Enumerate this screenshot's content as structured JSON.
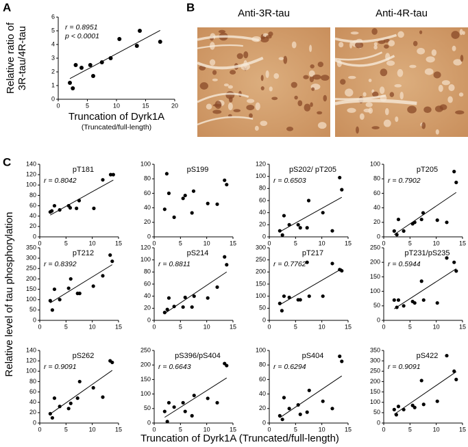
{
  "panel_labels": [
    "A",
    "B",
    "C"
  ],
  "micrographs": [
    "Anti-3R-tau",
    "Anti-4R-tau"
  ],
  "panel_c": {
    "y_label": "Relative level of tau phosphorylation",
    "x_label": "Truncation of Dyrk1A (Truncated/full-length)"
  },
  "chart_data": [
    {
      "type": "scatter",
      "y_label": [
        "Relative ratio of",
        "3R-tau/4R-tau"
      ],
      "x_label": "Truncation of Dyrk1A",
      "x_sublabel": "(Truncated/full-length)",
      "annotations": [
        "r = 0.8951",
        "p < 0.0001"
      ],
      "trendline": true,
      "x": [
        2,
        2.5,
        3,
        4,
        5.5,
        6,
        7.5,
        9,
        10.5,
        13.5,
        14,
        17.5
      ],
      "values": [
        1.2,
        0.8,
        2.5,
        2.3,
        2.5,
        1.7,
        2.7,
        3.0,
        4.4,
        3.9,
        5.0,
        4.2
      ],
      "xlim": [
        0,
        20
      ],
      "xticks": [
        0,
        5,
        10,
        15,
        20
      ],
      "ylim": [
        0,
        6
      ],
      "yticks": [
        0,
        1,
        2,
        3,
        4,
        5,
        6
      ],
      "color": "#000000"
    },
    {
      "type": "scatter",
      "title": "pT181",
      "annotations": [
        "r = 0.8042"
      ],
      "trendline": true,
      "x": [
        2,
        2.3,
        2.8,
        3.8,
        5.5,
        5.8,
        7,
        7.5,
        10.3,
        12,
        13.5,
        14
      ],
      "values": [
        48,
        50,
        60,
        52,
        60,
        56,
        55,
        70,
        55,
        110,
        120,
        120
      ],
      "xlim": [
        0,
        15
      ],
      "xticks": [
        0,
        5,
        10,
        15
      ],
      "ylim": [
        0,
        140
      ],
      "yticks": [
        0,
        20,
        40,
        60,
        80,
        100,
        120,
        140
      ],
      "color": "#000000"
    },
    {
      "type": "scatter",
      "title": "pS199",
      "annotations": [],
      "trendline": false,
      "x": [
        2,
        2.4,
        2.8,
        3.8,
        5.5,
        5.9,
        7.2,
        7.5,
        10.2,
        12,
        13.4,
        13.8
      ],
      "values": [
        38,
        87,
        60,
        27,
        53,
        57,
        33,
        63,
        46,
        45,
        78,
        72
      ],
      "xlim": [
        0,
        15
      ],
      "xticks": [
        0,
        5,
        10,
        15
      ],
      "ylim": [
        0,
        100
      ],
      "yticks": [
        0,
        20,
        40,
        60,
        80,
        100
      ],
      "color": "#000000"
    },
    {
      "type": "scatter",
      "title": "pS202/ pT205",
      "annotations": [
        "r = 0.6503"
      ],
      "trendline": true,
      "x": [
        2,
        2.5,
        2.8,
        3.8,
        5.5,
        5.9,
        7.2,
        7.5,
        10.2,
        12,
        13.4,
        13.8
      ],
      "values": [
        10,
        3,
        35,
        20,
        20,
        15,
        15,
        60,
        40,
        10,
        98,
        78
      ],
      "xlim": [
        0,
        15
      ],
      "xticks": [
        0,
        5,
        10,
        15
      ],
      "ylim": [
        0,
        120
      ],
      "yticks": [
        0,
        20,
        40,
        60,
        80,
        100,
        120
      ],
      "color": "#000000"
    },
    {
      "type": "scatter",
      "title": "pT205",
      "annotations": [
        "r = 0.7902"
      ],
      "trendline": true,
      "x": [
        2,
        2.5,
        2.8,
        3.8,
        5.5,
        5.9,
        7.2,
        7.5,
        10.2,
        12,
        13.4,
        13.8
      ],
      "values": [
        8,
        3,
        24,
        8,
        18,
        20,
        24,
        33,
        23,
        20,
        90,
        75
      ],
      "xlim": [
        0,
        15
      ],
      "xticks": [
        0,
        5,
        10,
        15
      ],
      "ylim": [
        0,
        100
      ],
      "yticks": [
        0,
        20,
        40,
        60,
        80,
        100
      ],
      "color": "#000000"
    },
    {
      "type": "scatter",
      "title": "pT212",
      "annotations": [
        "r = 0.8392"
      ],
      "trendline": true,
      "x": [
        2,
        2.4,
        2.8,
        3.8,
        5.5,
        5.9,
        7.2,
        7.6,
        10.2,
        12,
        13.4,
        13.8
      ],
      "values": [
        95,
        50,
        150,
        100,
        155,
        200,
        130,
        130,
        165,
        215,
        315,
        285
      ],
      "xlim": [
        0,
        15
      ],
      "xticks": [
        0,
        5,
        10,
        15
      ],
      "ylim": [
        0,
        350
      ],
      "yticks": [
        0,
        50,
        100,
        150,
        200,
        250,
        300,
        350
      ],
      "color": "#000000"
    },
    {
      "type": "scatter",
      "title": "pS214",
      "annotations": [
        "r = 0.8811"
      ],
      "trendline": true,
      "x": [
        2,
        2.5,
        2.8,
        3.8,
        5.5,
        5.9,
        7.2,
        7.6,
        10.2,
        12,
        13.4,
        13.8
      ],
      "values": [
        13,
        18,
        37,
        23,
        22,
        38,
        22,
        40,
        37,
        55,
        105,
        92
      ],
      "xlim": [
        0,
        15
      ],
      "xticks": [
        0,
        5,
        10,
        15
      ],
      "ylim": [
        0,
        120
      ],
      "yticks": [
        0,
        20,
        40,
        60,
        80,
        100,
        120
      ],
      "color": "#000000"
    },
    {
      "type": "scatter",
      "title": "pT217",
      "annotations": [
        "r = 0.7762"
      ],
      "trendline": true,
      "x": [
        2,
        2.4,
        2.8,
        3.8,
        5.5,
        5.9,
        7.2,
        7.6,
        10.2,
        12,
        13.4,
        13.8
      ],
      "values": [
        70,
        40,
        100,
        95,
        85,
        85,
        240,
        100,
        100,
        235,
        210,
        205
      ],
      "xlim": [
        0,
        15
      ],
      "xticks": [
        0,
        5,
        10,
        15
      ],
      "ylim": [
        0,
        300
      ],
      "yticks": [
        0,
        50,
        100,
        150,
        200,
        250,
        300
      ],
      "color": "#000000"
    },
    {
      "type": "scatter",
      "title": "pT231/pS235",
      "annotations": [
        "r = 0.5944"
      ],
      "trendline": true,
      "x": [
        2,
        2.5,
        2.8,
        3.8,
        5.5,
        5.9,
        7.2,
        7.6,
        10.2,
        12,
        13.4,
        13.8
      ],
      "values": [
        70,
        45,
        70,
        50,
        65,
        60,
        135,
        70,
        60,
        215,
        200,
        170
      ],
      "xlim": [
        0,
        15
      ],
      "xticks": [
        0,
        5,
        10,
        15
      ],
      "ylim": [
        0,
        250
      ],
      "yticks": [
        0,
        50,
        100,
        150,
        200,
        250
      ],
      "color": "#000000"
    },
    {
      "type": "scatter",
      "title": "pS262",
      "annotations": [
        "r = 0.9091"
      ],
      "trendline": true,
      "x": [
        2,
        2.4,
        2.8,
        3.8,
        5.5,
        5.9,
        7.2,
        7.6,
        10.2,
        12,
        13.4,
        13.8
      ],
      "values": [
        18,
        10,
        48,
        32,
        28,
        38,
        48,
        80,
        68,
        50,
        120,
        117
      ],
      "xlim": [
        0,
        15
      ],
      "xticks": [
        0,
        5,
        10,
        15
      ],
      "ylim": [
        0,
        140
      ],
      "yticks": [
        0,
        20,
        40,
        60,
        80,
        100,
        120,
        140
      ],
      "color": "#000000"
    },
    {
      "type": "scatter",
      "title": "pS396/pS404",
      "annotations": [
        "r = 0.6643"
      ],
      "trendline": true,
      "x": [
        2,
        2.5,
        2.8,
        3.8,
        5.5,
        5.9,
        7.2,
        7.6,
        10.2,
        12,
        13.4,
        13.8
      ],
      "values": [
        40,
        5,
        70,
        55,
        70,
        40,
        25,
        95,
        85,
        70,
        205,
        198
      ],
      "xlim": [
        0,
        15
      ],
      "xticks": [
        0,
        5,
        10,
        15
      ],
      "ylim": [
        0,
        250
      ],
      "yticks": [
        0,
        50,
        100,
        150,
        200,
        250
      ],
      "color": "#000000"
    },
    {
      "type": "scatter",
      "title": "pS404",
      "annotations": [
        "r = 0.6294"
      ],
      "trendline": true,
      "x": [
        2,
        2.5,
        2.8,
        3.8,
        5.5,
        5.9,
        7.2,
        7.6,
        10.2,
        12,
        13.4,
        13.8
      ],
      "values": [
        10,
        5,
        35,
        20,
        25,
        12,
        15,
        45,
        30,
        20,
        92,
        85
      ],
      "xlim": [
        0,
        15
      ],
      "xticks": [
        0,
        5,
        10,
        15
      ],
      "ylim": [
        0,
        100
      ],
      "yticks": [
        0,
        20,
        40,
        60,
        80,
        100
      ],
      "color": "#000000"
    },
    {
      "type": "scatter",
      "title": "pS422",
      "annotations": [
        "r = 0.9091"
      ],
      "trendline": true,
      "x": [
        2,
        2.4,
        2.8,
        3.8,
        5.5,
        5.9,
        7.2,
        7.6,
        10.2,
        12,
        13.4,
        13.8
      ],
      "values": [
        65,
        40,
        80,
        65,
        85,
        75,
        205,
        90,
        105,
        325,
        250,
        210
      ],
      "xlim": [
        0,
        15
      ],
      "xticks": [
        0,
        5,
        10,
        15
      ],
      "ylim": [
        0,
        350
      ],
      "yticks": [
        0,
        50,
        100,
        150,
        200,
        250,
        300,
        350
      ],
      "color": "#000000"
    }
  ]
}
